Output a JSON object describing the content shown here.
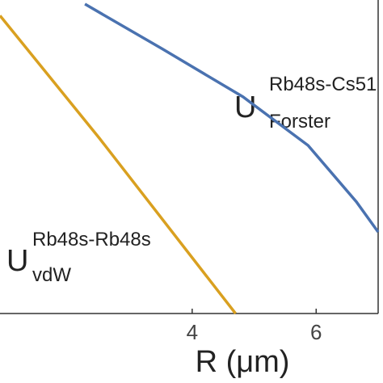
{
  "chart_data": {
    "type": "line",
    "x_label": "R (μm)",
    "xlim": [
      0.9,
      7
    ],
    "xticks": [
      4,
      6
    ],
    "ylim": [
      0,
      10
    ],
    "series": [
      {
        "color": "#4a72b0",
        "x": [
          2.27,
          3.51,
          4.82,
          5.87,
          6.65,
          7
        ],
        "values": [
          9.87,
          8.45,
          6.91,
          5.36,
          3.56,
          2.6
        ]
      },
      {
        "color": "#d9a020",
        "x": [
          0.9,
          2.5,
          4.7
        ],
        "values": [
          9.5,
          5.6,
          0
        ]
      }
    ],
    "annotations": [
      {
        "base": "U",
        "sup": "Rb48s-Cs51",
        "sub": "Forster"
      },
      {
        "base": "U",
        "sup": "Rb48s-Rb48s",
        "sub": "vdW"
      }
    ]
  }
}
